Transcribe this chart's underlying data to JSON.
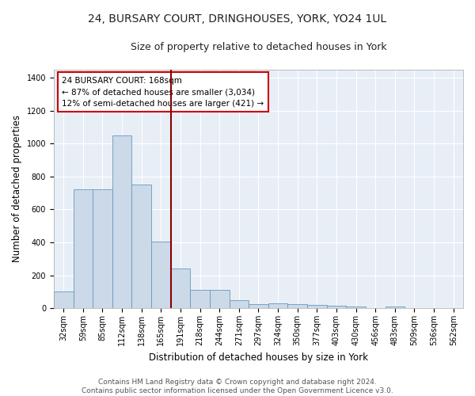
{
  "title1": "24, BURSARY COURT, DRINGHOUSES, YORK, YO24 1UL",
  "title2": "Size of property relative to detached houses in York",
  "xlabel": "Distribution of detached houses by size in York",
  "ylabel": "Number of detached properties",
  "bar_labels": [
    "32sqm",
    "59sqm",
    "85sqm",
    "112sqm",
    "138sqm",
    "165sqm",
    "191sqm",
    "218sqm",
    "244sqm",
    "271sqm",
    "297sqm",
    "324sqm",
    "350sqm",
    "377sqm",
    "403sqm",
    "430sqm",
    "456sqm",
    "483sqm",
    "509sqm",
    "536sqm",
    "562sqm"
  ],
  "bar_heights": [
    100,
    720,
    720,
    1050,
    750,
    405,
    240,
    110,
    110,
    50,
    25,
    30,
    25,
    20,
    15,
    10,
    0,
    10,
    0,
    0,
    0
  ],
  "bar_color": "#ccd9e8",
  "bar_edge_color": "#6699bb",
  "vline_color": "#880000",
  "annotation_text": "24 BURSARY COURT: 168sqm\n← 87% of detached houses are smaller (3,034)\n12% of semi-detached houses are larger (421) →",
  "ylim": [
    0,
    1450
  ],
  "yticks": [
    0,
    200,
    400,
    600,
    800,
    1000,
    1200,
    1400
  ],
  "background_color": "#e8eef6",
  "grid_color": "#ffffff",
  "footer_text": "Contains HM Land Registry data © Crown copyright and database right 2024.\nContains public sector information licensed under the Open Government Licence v3.0.",
  "title1_fontsize": 10,
  "title2_fontsize": 9,
  "xlabel_fontsize": 8.5,
  "ylabel_fontsize": 8.5,
  "tick_fontsize": 7,
  "annotation_fontsize": 7.5,
  "footer_fontsize": 6.5
}
